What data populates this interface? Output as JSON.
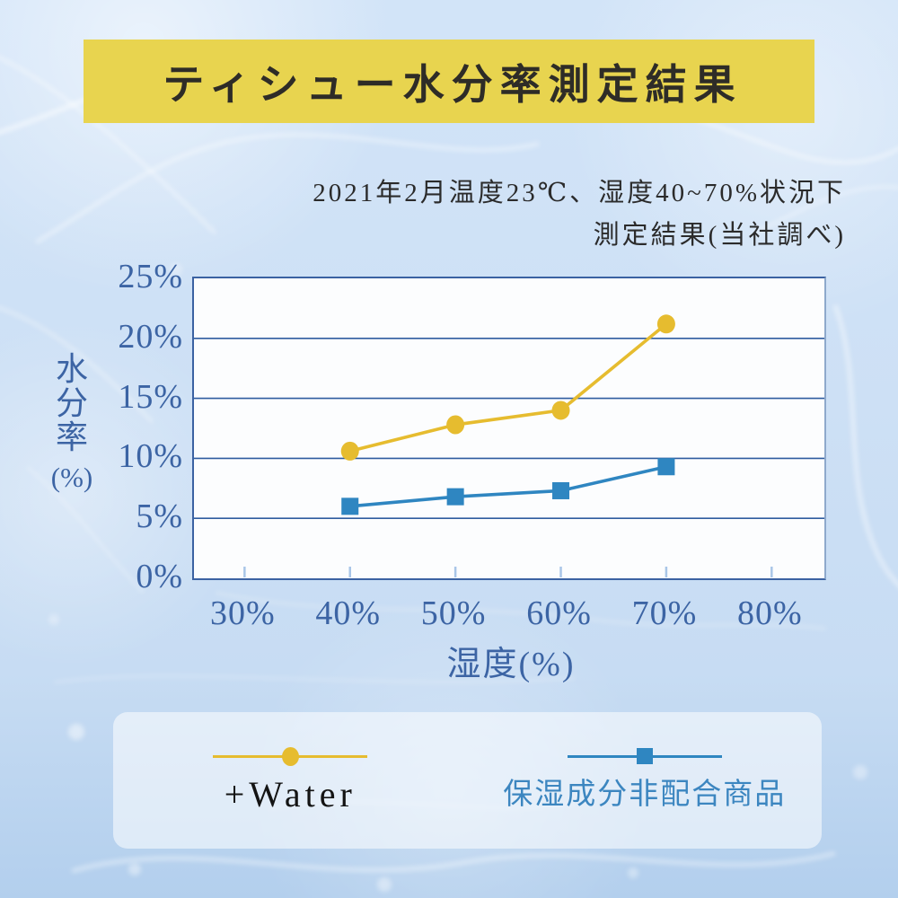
{
  "banner": {
    "title": "ティシュー水分率測定結果"
  },
  "subtitle": {
    "line1": "2021年2月温度23℃、湿度40~70%状況下",
    "line2": "測定結果(当社調べ)"
  },
  "colors": {
    "background": "#cde0f5",
    "banner_bg": "#e8d44f",
    "title_text": "#2e2c27",
    "subtitle_text": "#2b2b2b",
    "axis_text": "#3c64a4",
    "grid": "#2f5da0",
    "plot_border": "#3b62a2",
    "plot_bg": "#fcfdfe",
    "tick_mark": "#a9c6e8",
    "water_series": "#e6bc2f",
    "nonwater_series": "#2f86c1",
    "water_label_text": "#141414",
    "nonwater_label_text": "#3c86c0",
    "legend_panel": "rgba(255,255,255,0.55)"
  },
  "chart_data": {
    "type": "line",
    "title": "ティシュー水分率測定結果",
    "subtitle": "2021年2月温度23℃、湿度40~70%状況下 測定結果(当社調べ)",
    "xlabel": "湿度(%)",
    "ylabel": "水分率(%)",
    "ylabel_main": "水分率",
    "ylabel_unit": "(%)",
    "x": [
      40,
      50,
      60,
      70
    ],
    "series": [
      {
        "name": "+Water",
        "values": [
          10.6,
          12.8,
          14.0,
          21.2
        ],
        "color": "#e6bc2f",
        "marker": "circle",
        "label_color": "#141414"
      },
      {
        "name": "保湿成分非配合商品",
        "values": [
          6.0,
          6.8,
          7.3,
          9.3
        ],
        "color": "#2f86c1",
        "marker": "square",
        "label_color": "#3c86c0"
      }
    ],
    "x_ticks": [
      30,
      40,
      50,
      60,
      70,
      80
    ],
    "x_tick_labels": [
      "30%",
      "40%",
      "50%",
      "60%",
      "70%",
      "80%"
    ],
    "y_ticks": [
      0,
      5,
      10,
      15,
      20,
      25
    ],
    "y_tick_labels": [
      "0%",
      "5%",
      "10%",
      "15%",
      "20%",
      "25%"
    ],
    "xlim": [
      25.2,
      85.0
    ],
    "ylim": [
      0,
      25
    ],
    "grid": "horizontal",
    "legend_position": "bottom"
  }
}
